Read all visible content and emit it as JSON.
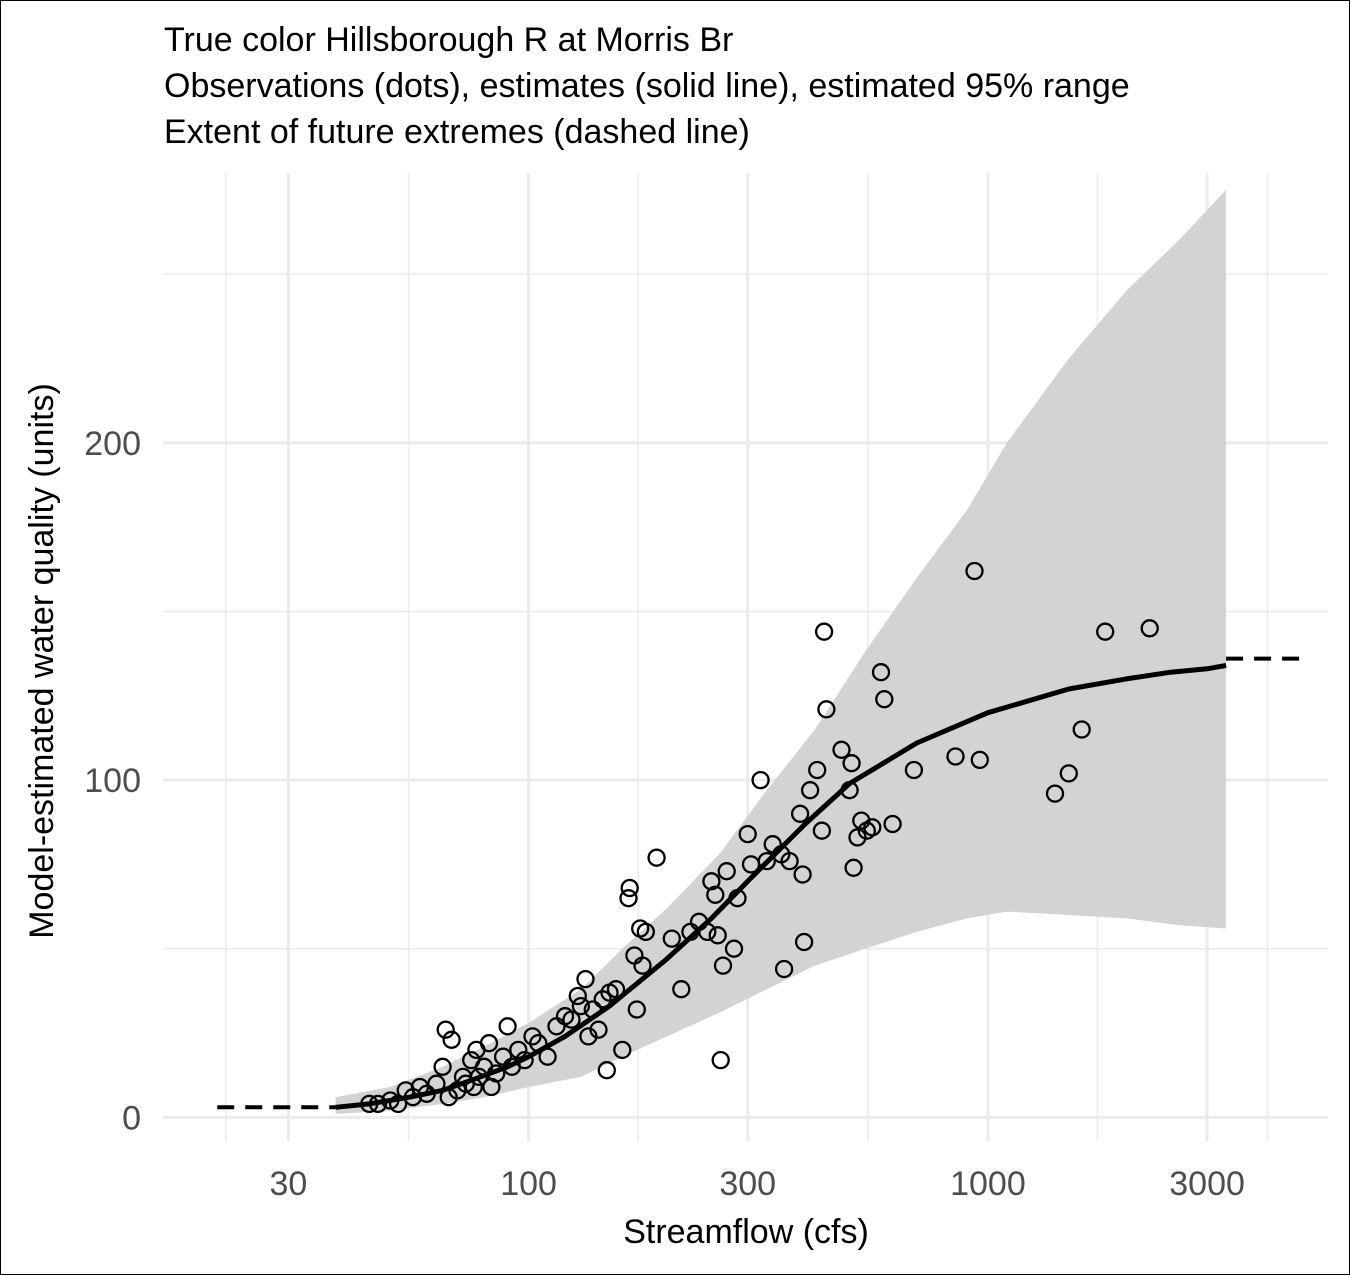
{
  "chart_data": {
    "type": "scatter",
    "title_lines": [
      "True color Hillsborough R at Morris Br",
      "Observations (dots), estimates (solid line), estimated 95% range",
      "Extent of future extremes (dashed line)"
    ],
    "xlabel": "Streamflow (cfs)",
    "ylabel": "Model-estimated water quality (units)",
    "x_scale": "log10",
    "xlim": [
      16,
      5500
    ],
    "ylim": [
      -7,
      280
    ],
    "x_ticks": [
      30,
      100,
      300,
      1000,
      3000
    ],
    "x_tick_labels": [
      "30",
      "100",
      "300",
      "1000",
      "3000"
    ],
    "y_ticks": [
      0,
      100,
      200
    ],
    "y_tick_labels": [
      "0",
      "100",
      "200"
    ],
    "grid": true,
    "colors": {
      "band": "#d3d3d3",
      "line": "#000000",
      "grid": "#ebebeb",
      "tick_text": "#4d4d4d"
    },
    "estimate_line": {
      "x": [
        38,
        45,
        55,
        65,
        75,
        90,
        100,
        120,
        150,
        200,
        250,
        300,
        400,
        500,
        700,
        1000,
        1500,
        2000,
        2500,
        3000,
        3300
      ],
      "y": [
        3,
        4,
        6,
        8,
        11,
        15,
        18,
        24,
        33,
        47,
        59,
        70,
        87,
        99,
        111,
        120,
        127,
        130,
        132,
        133,
        134
      ]
    },
    "range_95": {
      "x": [
        38,
        50,
        65,
        80,
        100,
        130,
        160,
        200,
        260,
        330,
        420,
        540,
        700,
        900,
        1100,
        1500,
        2000,
        2600,
        3300
      ],
      "lower": [
        1,
        2,
        4,
        6,
        9,
        12,
        18,
        24,
        31,
        38,
        45,
        50,
        55,
        59,
        61,
        60,
        59,
        57,
        56
      ],
      "upper": [
        6,
        9,
        15,
        21,
        28,
        38,
        50,
        62,
        78,
        97,
        115,
        138,
        160,
        180,
        200,
        225,
        245,
        260,
        275
      ]
    },
    "future_extremes": {
      "low": {
        "x": [
          21,
          38
        ],
        "y": [
          3,
          3
        ]
      },
      "high": {
        "x": [
          3300,
          5000
        ],
        "y": [
          136,
          136
        ]
      }
    },
    "observations": [
      {
        "x": 45,
        "y": 4
      },
      {
        "x": 47,
        "y": 4
      },
      {
        "x": 50,
        "y": 5
      },
      {
        "x": 52,
        "y": 4
      },
      {
        "x": 54,
        "y": 8
      },
      {
        "x": 56,
        "y": 6
      },
      {
        "x": 58,
        "y": 9
      },
      {
        "x": 60,
        "y": 7
      },
      {
        "x": 63,
        "y": 10
      },
      {
        "x": 65,
        "y": 15
      },
      {
        "x": 66,
        "y": 26
      },
      {
        "x": 67,
        "y": 6
      },
      {
        "x": 68,
        "y": 23
      },
      {
        "x": 70,
        "y": 8
      },
      {
        "x": 72,
        "y": 12
      },
      {
        "x": 73,
        "y": 10
      },
      {
        "x": 75,
        "y": 17
      },
      {
        "x": 76,
        "y": 9
      },
      {
        "x": 77,
        "y": 20
      },
      {
        "x": 78,
        "y": 12
      },
      {
        "x": 80,
        "y": 15
      },
      {
        "x": 82,
        "y": 22
      },
      {
        "x": 83,
        "y": 9
      },
      {
        "x": 85,
        "y": 13
      },
      {
        "x": 88,
        "y": 18
      },
      {
        "x": 90,
        "y": 27
      },
      {
        "x": 92,
        "y": 15
      },
      {
        "x": 95,
        "y": 20
      },
      {
        "x": 98,
        "y": 17
      },
      {
        "x": 102,
        "y": 24
      },
      {
        "x": 105,
        "y": 22
      },
      {
        "x": 110,
        "y": 18
      },
      {
        "x": 115,
        "y": 27
      },
      {
        "x": 120,
        "y": 30
      },
      {
        "x": 124,
        "y": 29
      },
      {
        "x": 128,
        "y": 36
      },
      {
        "x": 130,
        "y": 33
      },
      {
        "x": 133,
        "y": 41
      },
      {
        "x": 135,
        "y": 24
      },
      {
        "x": 138,
        "y": 32
      },
      {
        "x": 142,
        "y": 26
      },
      {
        "x": 145,
        "y": 35
      },
      {
        "x": 148,
        "y": 14
      },
      {
        "x": 150,
        "y": 37
      },
      {
        "x": 155,
        "y": 38
      },
      {
        "x": 160,
        "y": 20
      },
      {
        "x": 165,
        "y": 65
      },
      {
        "x": 166,
        "y": 68
      },
      {
        "x": 170,
        "y": 48
      },
      {
        "x": 172,
        "y": 32
      },
      {
        "x": 175,
        "y": 56
      },
      {
        "x": 177,
        "y": 45
      },
      {
        "x": 180,
        "y": 55
      },
      {
        "x": 190,
        "y": 77
      },
      {
        "x": 205,
        "y": 53
      },
      {
        "x": 215,
        "y": 38
      },
      {
        "x": 225,
        "y": 55
      },
      {
        "x": 235,
        "y": 58
      },
      {
        "x": 245,
        "y": 55
      },
      {
        "x": 250,
        "y": 70
      },
      {
        "x": 255,
        "y": 66
      },
      {
        "x": 258,
        "y": 54
      },
      {
        "x": 262,
        "y": 17
      },
      {
        "x": 265,
        "y": 45
      },
      {
        "x": 270,
        "y": 73
      },
      {
        "x": 280,
        "y": 50
      },
      {
        "x": 285,
        "y": 65
      },
      {
        "x": 300,
        "y": 84
      },
      {
        "x": 305,
        "y": 75
      },
      {
        "x": 320,
        "y": 100
      },
      {
        "x": 330,
        "y": 76
      },
      {
        "x": 340,
        "y": 81
      },
      {
        "x": 355,
        "y": 78
      },
      {
        "x": 360,
        "y": 44
      },
      {
        "x": 370,
        "y": 76
      },
      {
        "x": 390,
        "y": 90
      },
      {
        "x": 395,
        "y": 72
      },
      {
        "x": 398,
        "y": 52
      },
      {
        "x": 410,
        "y": 97
      },
      {
        "x": 425,
        "y": 103
      },
      {
        "x": 435,
        "y": 85
      },
      {
        "x": 440,
        "y": 144
      },
      {
        "x": 445,
        "y": 121
      },
      {
        "x": 480,
        "y": 109
      },
      {
        "x": 500,
        "y": 97
      },
      {
        "x": 505,
        "y": 105
      },
      {
        "x": 510,
        "y": 74
      },
      {
        "x": 520,
        "y": 83
      },
      {
        "x": 530,
        "y": 88
      },
      {
        "x": 545,
        "y": 85
      },
      {
        "x": 560,
        "y": 86
      },
      {
        "x": 585,
        "y": 132
      },
      {
        "x": 595,
        "y": 124
      },
      {
        "x": 620,
        "y": 87
      },
      {
        "x": 690,
        "y": 103
      },
      {
        "x": 850,
        "y": 107
      },
      {
        "x": 935,
        "y": 162
      },
      {
        "x": 960,
        "y": 106
      },
      {
        "x": 1400,
        "y": 96
      },
      {
        "x": 1500,
        "y": 102
      },
      {
        "x": 1600,
        "y": 115
      },
      {
        "x": 1800,
        "y": 144
      },
      {
        "x": 2250,
        "y": 145
      }
    ]
  }
}
